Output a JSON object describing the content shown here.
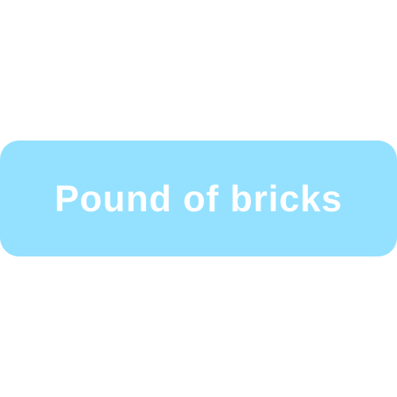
{
  "button": {
    "label": "Pound of bricks",
    "background_color": "#94e1ff",
    "text_color": "#ffffff"
  },
  "page": {
    "background_color": "#ffffff"
  }
}
